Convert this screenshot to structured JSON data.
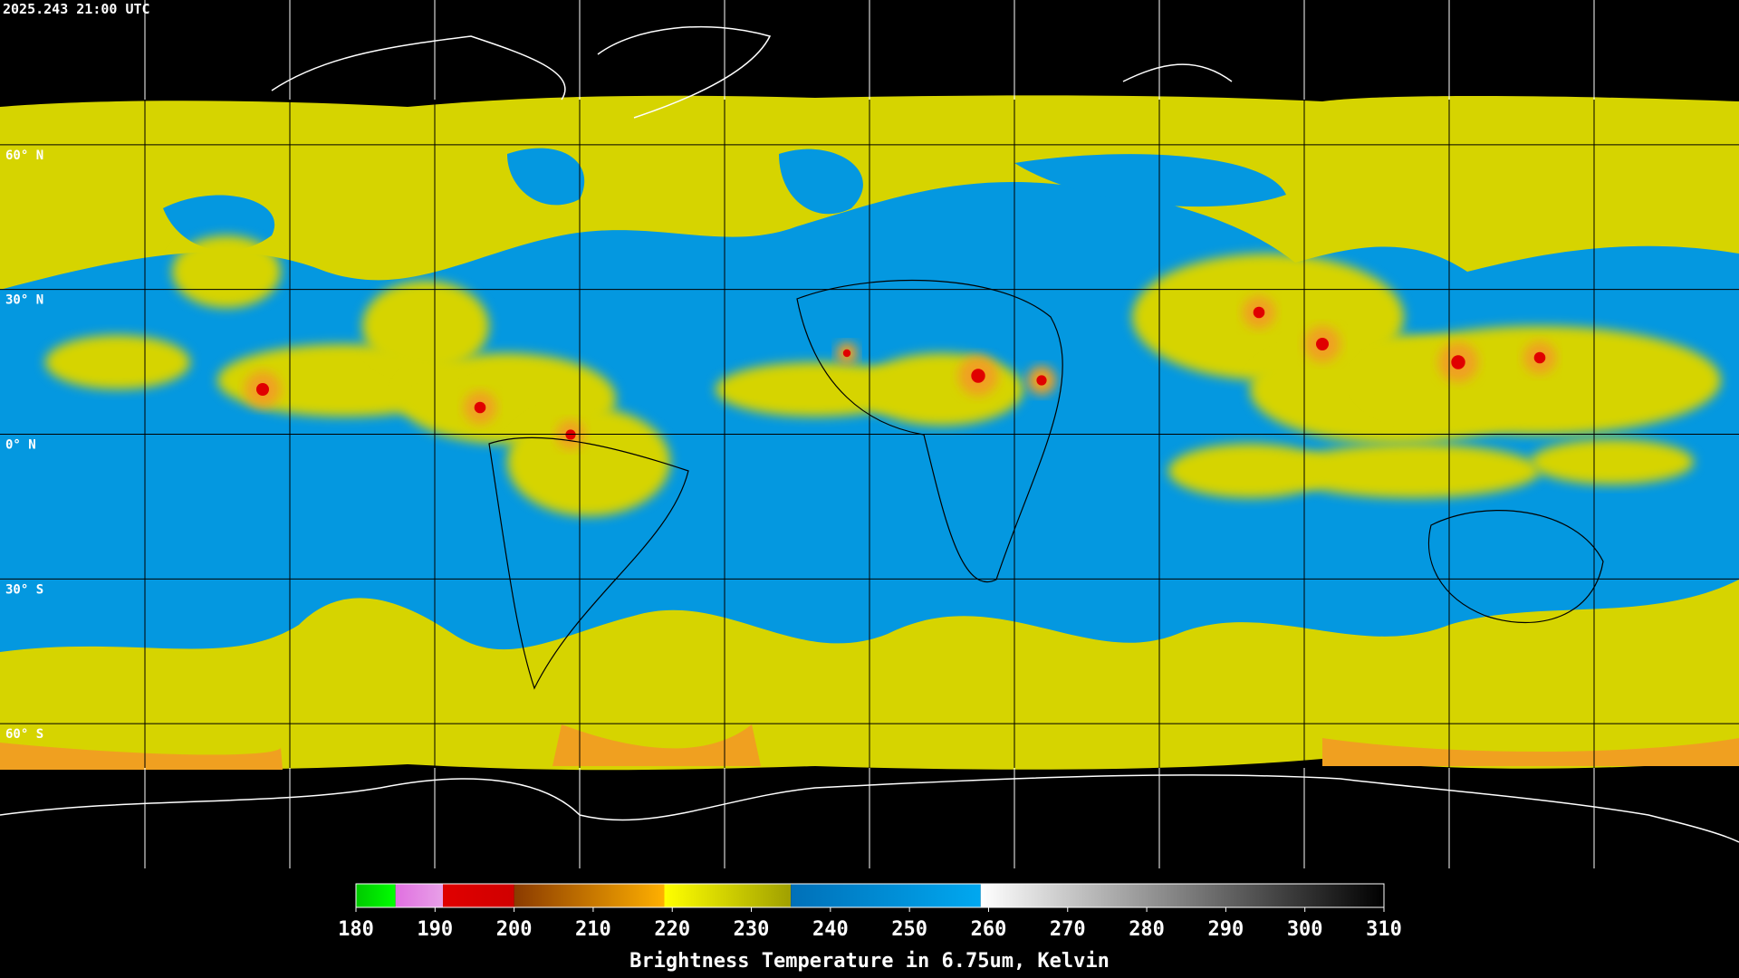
{
  "header": {
    "timestamp": "2025.243 21:00 UTC"
  },
  "map": {
    "lat_labels": [
      "60° N",
      "30° N",
      "0° N",
      "30° S",
      "60° S"
    ]
  },
  "colorbar": {
    "title": "Brightness Temperature in 6.75um, Kelvin",
    "range": [
      180,
      310
    ],
    "ticks": [
      180,
      190,
      200,
      210,
      220,
      230,
      240,
      250,
      260,
      270,
      280,
      290,
      300,
      310
    ],
    "segments": [
      {
        "from": 180,
        "to": 185,
        "colors": [
          "#00c800",
          "#00ff00"
        ]
      },
      {
        "from": 185,
        "to": 191,
        "colors": [
          "#e070e0",
          "#e8a0e8"
        ]
      },
      {
        "from": 191,
        "to": 200,
        "colors": [
          "#e00000",
          "#d00000"
        ]
      },
      {
        "from": 200,
        "to": 219,
        "colors": [
          "#8a3a00",
          "#ffb000"
        ]
      },
      {
        "from": 219,
        "to": 235,
        "colors": [
          "#ffff00",
          "#a0a000"
        ]
      },
      {
        "from": 235,
        "to": 259,
        "colors": [
          "#0070b8",
          "#00a8f0"
        ]
      },
      {
        "from": 259,
        "to": 310,
        "colors": [
          "#ffffff",
          "#000000"
        ]
      }
    ]
  }
}
